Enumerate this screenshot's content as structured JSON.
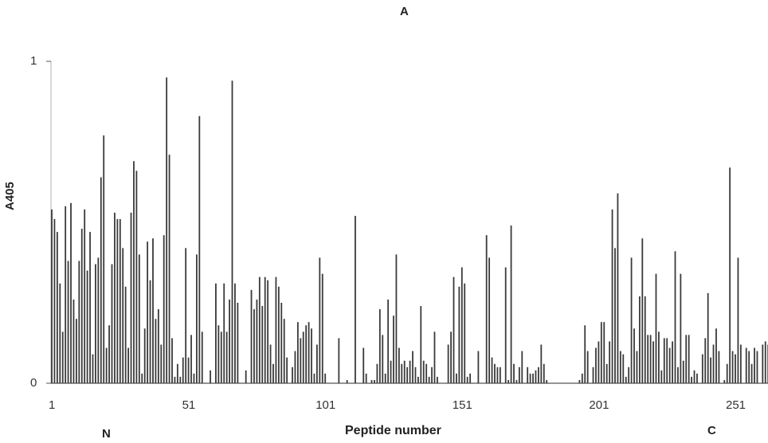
{
  "chart_data": {
    "type": "bar",
    "panel_label": "A",
    "xlabel": "Peptide number",
    "ylabel": "A405",
    "terminus_left": "N",
    "terminus_right": "C",
    "ylim": [
      0,
      1
    ],
    "yticks": [
      "0",
      "1"
    ],
    "xticks": [
      "1",
      "51",
      "101",
      "151",
      "201",
      "251"
    ],
    "xtick_values": [
      1,
      51,
      101,
      151,
      201,
      251
    ],
    "x_start": 1,
    "bar_color": "#3a3a3a",
    "values": [
      0.54,
      0.51,
      0.47,
      0.31,
      0.16,
      0.55,
      0.38,
      0.56,
      0.26,
      0.2,
      0.38,
      0.48,
      0.54,
      0.35,
      0.47,
      0.09,
      0.37,
      0.39,
      0.64,
      0.77,
      0.11,
      0.18,
      0.37,
      0.53,
      0.51,
      0.51,
      0.42,
      0.3,
      0.11,
      0.53,
      0.69,
      0.66,
      0.4,
      0.03,
      0.17,
      0.44,
      0.32,
      0.45,
      0.2,
      0.23,
      0.12,
      0.46,
      0.95,
      0.71,
      0.14,
      0.02,
      0.06,
      0.02,
      0.08,
      0.42,
      0.08,
      0.15,
      0.03,
      0.4,
      0.83,
      0.16,
      0.0,
      0.0,
      0.04,
      0.0,
      0.31,
      0.18,
      0.16,
      0.31,
      0.16,
      0.26,
      0.94,
      0.31,
      0.25,
      0.0,
      0.0,
      0.04,
      0.0,
      0.29,
      0.23,
      0.26,
      0.33,
      0.24,
      0.33,
      0.32,
      0.12,
      0.06,
      0.33,
      0.3,
      0.25,
      0.2,
      0.08,
      0.0,
      0.05,
      0.1,
      0.19,
      0.14,
      0.16,
      0.18,
      0.19,
      0.17,
      0.03,
      0.12,
      0.39,
      0.34,
      0.03,
      0.0,
      0.0,
      0.0,
      0.0,
      0.14,
      0.0,
      0.0,
      0.01,
      0.0,
      0.0,
      0.52,
      0.0,
      0.0,
      0.11,
      0.03,
      0.0,
      0.01,
      0.01,
      0.06,
      0.23,
      0.15,
      0.03,
      0.26,
      0.07,
      0.21,
      0.4,
      0.11,
      0.06,
      0.07,
      0.05,
      0.07,
      0.1,
      0.05,
      0.02,
      0.24,
      0.07,
      0.06,
      0.02,
      0.05,
      0.16,
      0.02,
      0.0,
      0.0,
      0.0,
      0.12,
      0.16,
      0.33,
      0.03,
      0.3,
      0.36,
      0.31,
      0.02,
      0.03,
      0.0,
      0.0,
      0.1,
      0.0,
      0.0,
      0.46,
      0.39,
      0.08,
      0.06,
      0.05,
      0.05,
      0.0,
      0.36,
      0.01,
      0.49,
      0.06,
      0.01,
      0.05,
      0.1,
      0.0,
      0.05,
      0.03,
      0.03,
      0.04,
      0.05,
      0.12,
      0.06,
      0.01,
      0.0,
      0.0,
      0.0,
      0.0,
      0.0,
      0.0,
      0.0,
      0.0,
      0.0,
      0.0,
      0.0,
      0.01,
      0.03,
      0.18,
      0.1,
      0.0,
      0.05,
      0.11,
      0.13,
      0.19,
      0.19,
      0.06,
      0.13,
      0.54,
      0.42,
      0.59,
      0.1,
      0.09,
      0.02,
      0.05,
      0.39,
      0.17,
      0.1,
      0.27,
      0.45,
      0.27,
      0.15,
      0.15,
      0.13,
      0.34,
      0.16,
      0.04,
      0.14,
      0.14,
      0.11,
      0.13,
      0.41,
      0.05,
      0.34,
      0.07,
      0.15,
      0.15,
      0.02,
      0.04,
      0.03,
      0.0,
      0.09,
      0.14,
      0.28,
      0.08,
      0.12,
      0.17,
      0.1,
      0.0,
      0.01,
      0.06,
      0.67,
      0.1,
      0.09,
      0.39,
      0.12,
      0.0,
      0.11,
      0.1,
      0.06,
      0.11,
      0.1,
      0.0,
      0.12,
      0.13,
      0.12
    ]
  }
}
